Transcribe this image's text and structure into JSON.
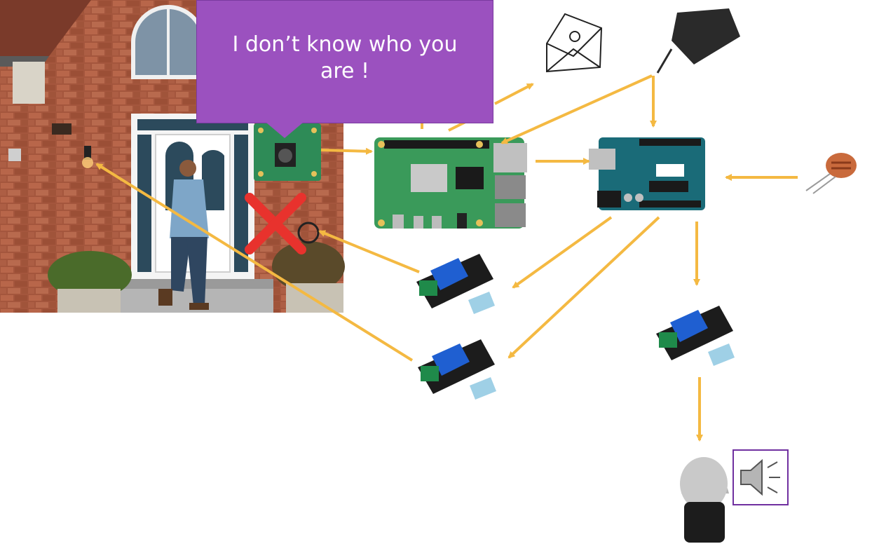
{
  "speech_bubble": {
    "text": "I don’t know who you are !"
  },
  "colors": {
    "arrow": "#f4b942",
    "bubble": "#9b51bf",
    "speaker_border": "#7030a0",
    "cross": "#e8322d",
    "pcb_green": "#2e8b57",
    "arduino_blue": "#1a6b78",
    "relay_blue": "#1f5fd1"
  },
  "icons": {
    "email": "envelope-email-icon",
    "power": "power-adapter-icon",
    "sensor": "light-sensor-icon",
    "speaker": "speaker-icon",
    "bell": "alarm-bell-icon",
    "cross": "red-cross-icon"
  }
}
